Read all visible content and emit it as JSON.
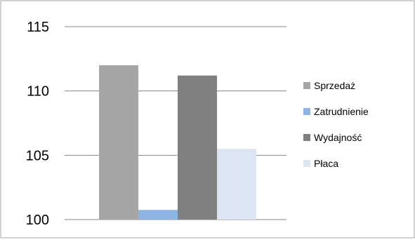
{
  "chart_data": {
    "type": "bar",
    "title": "",
    "xlabel": "",
    "ylabel": "",
    "ylim": [
      100,
      115
    ],
    "yticks": [
      100,
      105,
      110,
      115
    ],
    "grid": true,
    "legend_position": "right",
    "series": [
      {
        "name": "Sprzedaż",
        "value": 112.0,
        "color": "#a6a6a6"
      },
      {
        "name": "Zatrudnienie",
        "value": 100.75,
        "color": "#8eb4e3"
      },
      {
        "name": "Wydajność",
        "value": 111.2,
        "color": "#808080"
      },
      {
        "name": "Płaca",
        "value": 105.5,
        "color": "#dce6f2"
      }
    ]
  }
}
